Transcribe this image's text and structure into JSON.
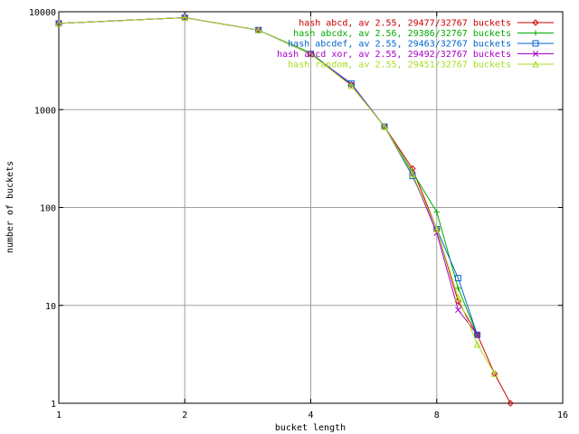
{
  "chart_data": {
    "type": "line",
    "xlabel": "bucket length",
    "ylabel": "number of buckets",
    "x_scale": "log2",
    "y_scale": "log10",
    "xlim": [
      1,
      16
    ],
    "ylim": [
      1,
      10000
    ],
    "grid": true,
    "legend_position": "top-right",
    "x_ticks": [
      {
        "value": 1,
        "label": "1"
      },
      {
        "value": 2,
        "label": "2"
      },
      {
        "value": 4,
        "label": "4"
      },
      {
        "value": 8,
        "label": "8"
      },
      {
        "value": 16,
        "label": "16"
      }
    ],
    "y_ticks": [
      {
        "value": 1,
        "label": "1"
      },
      {
        "value": 10,
        "label": "10"
      },
      {
        "value": 100,
        "label": "100"
      },
      {
        "value": 1000,
        "label": "1000"
      },
      {
        "value": 10000,
        "label": "10000"
      }
    ],
    "series": [
      {
        "name": "hash abcd, av 2.55, 29477/32767 buckets",
        "color": "#cc0000",
        "marker": "diamond",
        "points": [
          [
            1,
            7600
          ],
          [
            2,
            8700
          ],
          [
            3,
            6500
          ],
          [
            4,
            3700
          ],
          [
            5,
            1800
          ],
          [
            6,
            670
          ],
          [
            7,
            250
          ],
          [
            8,
            60
          ],
          [
            9,
            11
          ],
          [
            10,
            5
          ],
          [
            11,
            2
          ],
          [
            12,
            1
          ]
        ]
      },
      {
        "name": "hash abcdx, av 2.56, 29386/32767 buckets",
        "color": "#00aa00",
        "marker": "plus",
        "points": [
          [
            1,
            7600
          ],
          [
            2,
            8700
          ],
          [
            3,
            6500
          ],
          [
            4,
            3800
          ],
          [
            5,
            1800
          ],
          [
            6,
            670
          ],
          [
            7,
            230
          ],
          [
            8,
            90
          ],
          [
            9,
            15
          ],
          [
            10,
            5
          ]
        ]
      },
      {
        "name": "hash abcdef, av 2.55, 29463/32767 buckets",
        "color": "#0066cc",
        "marker": "square",
        "points": [
          [
            1,
            7600
          ],
          [
            2,
            8700
          ],
          [
            3,
            6500
          ],
          [
            4,
            3700
          ],
          [
            5,
            1850
          ],
          [
            6,
            670
          ],
          [
            7,
            210
          ],
          [
            8,
            60
          ],
          [
            9,
            19
          ],
          [
            10,
            5
          ]
        ]
      },
      {
        "name": "hash abcd xor, av 2.55, 29492/32767 buckets",
        "color": "#aa00cc",
        "marker": "cross",
        "points": [
          [
            1,
            7600
          ],
          [
            2,
            8700
          ],
          [
            3,
            6500
          ],
          [
            4,
            3700
          ],
          [
            5,
            1800
          ],
          [
            6,
            670
          ],
          [
            7,
            220
          ],
          [
            8,
            55
          ],
          [
            9,
            9
          ],
          [
            10,
            5
          ]
        ]
      },
      {
        "name": "hash random, av 2.55, 29451/32767 buckets",
        "color": "#aadd22",
        "marker": "triangle",
        "points": [
          [
            1,
            7600
          ],
          [
            2,
            8700
          ],
          [
            3,
            6500
          ],
          [
            4,
            3700
          ],
          [
            5,
            1750
          ],
          [
            6,
            670
          ],
          [
            7,
            220
          ],
          [
            8,
            60
          ],
          [
            9,
            12
          ],
          [
            10,
            4
          ],
          [
            11,
            2
          ]
        ]
      }
    ]
  }
}
